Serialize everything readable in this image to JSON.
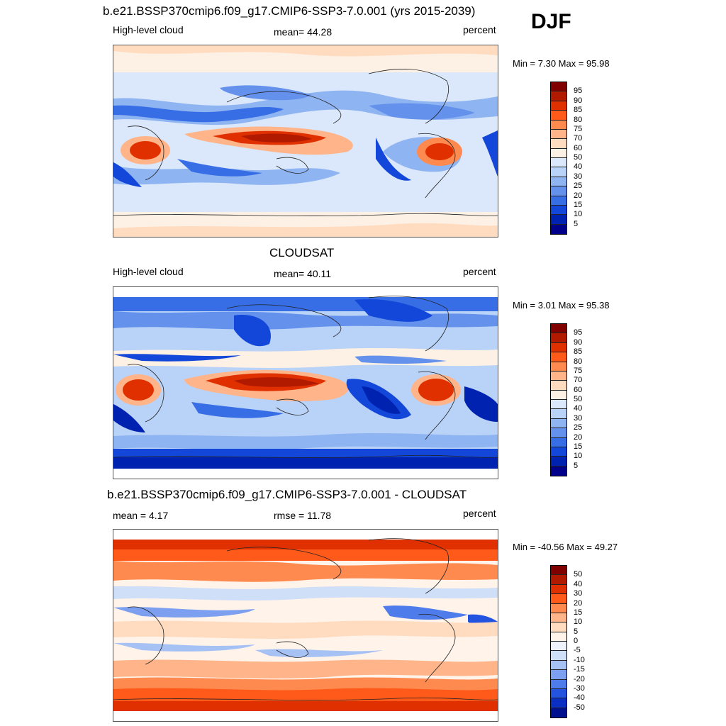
{
  "season": "DJF",
  "panels": [
    {
      "title": "b.e21.BSSP370cmip6.f09_g17.CMIP6-SSP3-7.0.001 (yrs 2015-2039)",
      "left_label": "High-level cloud",
      "center_label": "mean=  44.28",
      "right_label": "percent",
      "minmax": "Min =   7.30 Max =  95.98",
      "colorbar_ticks": [
        "95",
        "90",
        "85",
        "80",
        "75",
        "70",
        "60",
        "50",
        "40",
        "30",
        "25",
        "20",
        "15",
        "10",
        "5"
      ],
      "palette": "full"
    },
    {
      "title": "CLOUDSAT",
      "left_label": "High-level cloud",
      "center_label": "mean=  40.11",
      "right_label": "percent",
      "minmax": "Min =   3.01 Max =  95.38",
      "colorbar_ticks": [
        "95",
        "90",
        "85",
        "80",
        "75",
        "70",
        "60",
        "50",
        "40",
        "30",
        "25",
        "20",
        "15",
        "10",
        "5"
      ],
      "palette": "full"
    },
    {
      "title": "b.e21.BSSP370cmip6.f09_g17.CMIP6-SSP3-7.0.001 - CLOUDSAT",
      "left_label": "mean =   4.17",
      "center_label": "rmse =  11.78",
      "right_label": "percent",
      "minmax": "Min = -40.56 Max =  49.27",
      "colorbar_ticks": [
        "50",
        "40",
        "30",
        "20",
        "15",
        "10",
        "5",
        "0",
        "-5",
        "-10",
        "-15",
        "-20",
        "-30",
        "-40",
        "-50"
      ],
      "palette": "diff"
    }
  ],
  "colors": {
    "full": [
      "#800000",
      "#b21a00",
      "#e03000",
      "#ff5a1a",
      "#ff8a50",
      "#ffb48a",
      "#ffdcc0",
      "#fdf0e4",
      "#dbe8fb",
      "#b9d2f8",
      "#8fb4f2",
      "#6491ec",
      "#386ee5",
      "#1247d9",
      "#0022b0",
      "#00008a"
    ],
    "diff": [
      "#800000",
      "#b21a00",
      "#e03000",
      "#ff5a1a",
      "#ff8a50",
      "#ffb48a",
      "#ffdcc0",
      "#fff3ea",
      "#eef3fd",
      "#cfdff8",
      "#a6c2f4",
      "#7c9ff0",
      "#4f7ceb",
      "#2454df",
      "#0a2fc2",
      "#00108e"
    ]
  }
}
